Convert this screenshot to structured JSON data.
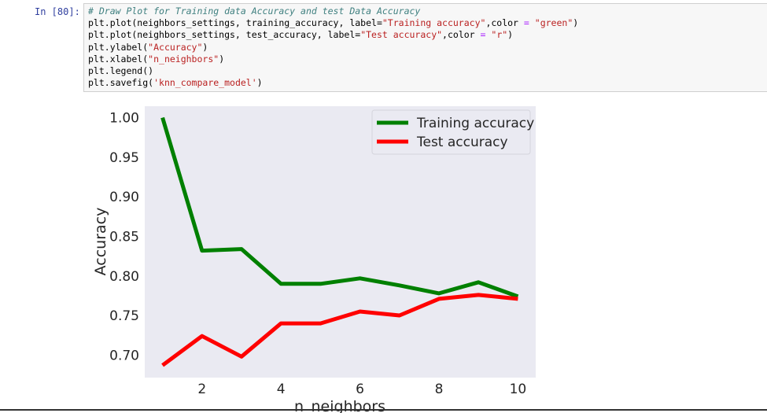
{
  "cell": {
    "prompt": "In [80]:",
    "code": {
      "comment": "# Draw Plot for Training data Accuracy and test Data Accuracy",
      "line2_a": "plt.plot(neighbors_settings, training_accuracy, label=",
      "line2_s1": "\"Training accuracy\"",
      "line2_b": ",color ",
      "line2_op": "=",
      "line2_s2": "\"green\"",
      "line2_c": ")",
      "line3_a": "plt.plot(neighbors_settings, test_accuracy, label=",
      "line3_s1": "\"Test accuracy\"",
      "line3_b": ",color ",
      "line3_op": "=",
      "line3_s2": "\"r\"",
      "line3_c": ")",
      "line4_a": "plt.ylabel(",
      "line4_s": "\"Accuracy\"",
      "line4_c": ")",
      "line5_a": "plt.xlabel(",
      "line5_s": "\"n_neighbors\"",
      "line5_c": ")",
      "line6": "plt.legend()",
      "line7_a": "plt.savefig(",
      "line7_s": "'knn_compare_model'",
      "line7_c": ")"
    }
  },
  "chart_data": {
    "type": "line",
    "xlabel": "n_neighbors",
    "ylabel": "Accuracy",
    "x": [
      1,
      2,
      3,
      4,
      5,
      6,
      7,
      8,
      9,
      10
    ],
    "xticks": [
      2,
      4,
      6,
      8,
      10
    ],
    "xlim": [
      0.55,
      10.45
    ],
    "yticks": [
      "1.00",
      "0.95",
      "0.90",
      "0.85",
      "0.80",
      "0.75",
      "0.70"
    ],
    "ylim": [
      0.6715,
      1.0145
    ],
    "grid": false,
    "legend_position": "top-right",
    "background": "#eaeaf2",
    "series": [
      {
        "name": "Training accuracy",
        "color": "#008000",
        "values": [
          1.0,
          0.832,
          0.834,
          0.79,
          0.79,
          0.797,
          0.788,
          0.778,
          0.792,
          0.774
        ]
      },
      {
        "name": "Test accuracy",
        "color": "#ff0000",
        "values": [
          0.687,
          0.724,
          0.698,
          0.74,
          0.74,
          0.755,
          0.75,
          0.771,
          0.776,
          0.771
        ]
      }
    ]
  }
}
